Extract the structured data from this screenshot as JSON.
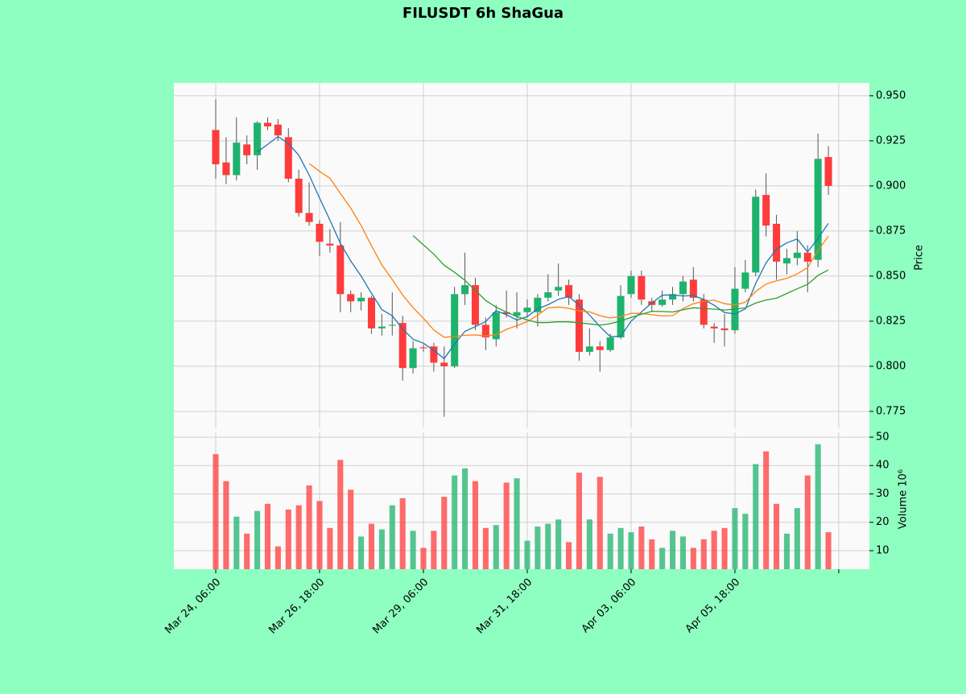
{
  "chart_data": {
    "type": "candlestick",
    "title": "FILUSDT 6h ShaGua",
    "ylabel": "Price",
    "volume_label": "Volume  10⁶",
    "open": [
      0.931,
      0.913,
      0.906,
      0.923,
      0.917,
      0.935,
      0.934,
      0.927,
      0.904,
      0.885,
      0.879,
      0.868,
      0.867,
      0.84,
      0.836,
      0.838,
      0.821,
      0.8225,
      0.824,
      0.799,
      0.8105,
      0.811,
      0.802,
      0.8,
      0.84,
      0.845,
      0.823,
      0.815,
      0.83,
      0.828,
      0.83,
      0.83,
      0.838,
      0.842,
      0.845,
      0.837,
      0.808,
      0.811,
      0.809,
      0.816,
      0.84,
      0.85,
      0.836,
      0.834,
      0.837,
      0.84,
      0.848,
      0.837,
      0.822,
      0.821,
      0.82,
      0.843,
      0.852,
      0.895,
      0.879,
      0.857,
      0.86,
      0.863,
      0.859,
      0.916
    ],
    "high": [
      0.948,
      0.927,
      0.938,
      0.928,
      0.936,
      0.938,
      0.937,
      0.932,
      0.909,
      0.902,
      0.881,
      0.876,
      0.88,
      0.842,
      0.841,
      0.839,
      0.829,
      0.841,
      0.828,
      0.814,
      0.812,
      0.813,
      0.811,
      0.844,
      0.863,
      0.849,
      0.827,
      0.834,
      0.842,
      0.841,
      0.837,
      0.84,
      0.851,
      0.857,
      0.848,
      0.84,
      0.821,
      0.814,
      0.818,
      0.845,
      0.853,
      0.853,
      0.838,
      0.842,
      0.844,
      0.85,
      0.855,
      0.84,
      0.824,
      0.829,
      0.855,
      0.859,
      0.898,
      0.907,
      0.884,
      0.865,
      0.875,
      0.867,
      0.929,
      0.922
    ],
    "low": [
      0.904,
      0.901,
      0.903,
      0.912,
      0.909,
      0.931,
      0.925,
      0.902,
      0.883,
      0.878,
      0.861,
      0.863,
      0.83,
      0.83,
      0.831,
      0.818,
      0.817,
      0.817,
      0.792,
      0.796,
      0.808,
      0.797,
      0.772,
      0.799,
      0.834,
      0.82,
      0.809,
      0.811,
      0.827,
      0.821,
      0.827,
      0.822,
      0.836,
      0.839,
      0.834,
      0.803,
      0.806,
      0.797,
      0.808,
      0.815,
      0.838,
      0.834,
      0.83,
      0.833,
      0.834,
      0.836,
      0.836,
      0.821,
      0.813,
      0.811,
      0.818,
      0.841,
      0.85,
      0.872,
      0.848,
      0.851,
      0.856,
      0.841,
      0.855,
      0.895
    ],
    "close": [
      0.912,
      0.906,
      0.924,
      0.917,
      0.935,
      0.933,
      0.928,
      0.904,
      0.885,
      0.88,
      0.869,
      0.867,
      0.84,
      0.836,
      0.838,
      0.821,
      0.822,
      0.823,
      0.799,
      0.81,
      0.81,
      0.802,
      0.8,
      0.84,
      0.845,
      0.823,
      0.816,
      0.83,
      0.829,
      0.83,
      0.8325,
      0.838,
      0.841,
      0.844,
      0.838,
      0.808,
      0.811,
      0.809,
      0.816,
      0.839,
      0.85,
      0.837,
      0.834,
      0.837,
      0.84,
      0.847,
      0.838,
      0.823,
      0.821,
      0.82,
      0.843,
      0.852,
      0.894,
      0.878,
      0.858,
      0.86,
      0.863,
      0.858,
      0.915,
      0.9
    ],
    "volume": [
      44,
      34.5,
      22,
      16,
      24,
      26.5,
      11.5,
      24.5,
      26,
      33,
      27.5,
      18,
      42,
      31.5,
      15,
      19.5,
      17.5,
      26,
      28.5,
      17,
      11,
      17,
      29,
      36.5,
      39,
      34.5,
      18,
      19,
      34,
      35.5,
      13.5,
      18.5,
      19.5,
      21,
      13,
      37.5,
      21,
      36,
      16,
      18,
      16.5,
      18.5,
      14,
      11,
      17,
      15,
      11,
      14,
      17,
      18,
      25,
      23,
      40.5,
      45,
      26.5,
      16,
      25,
      36.5,
      47.5,
      16.5
    ],
    "up_color": "#1db36c",
    "down_color": "#ff3b3b",
    "moving_averages": [
      {
        "window": 5,
        "color": "#1f77b4"
      },
      {
        "window": 10,
        "color": "#ff7f0e"
      },
      {
        "window": 20,
        "color": "#2ca02c"
      }
    ],
    "xlim": [
      -4.03,
      62.95
    ],
    "xticks": [
      {
        "value": 0,
        "label": "Mar 24, 06:00"
      },
      {
        "value": 10,
        "label": "Mar 26, 18:00"
      },
      {
        "value": 20,
        "label": "Mar 29, 06:00"
      },
      {
        "value": 30,
        "label": "Mar 31, 18:00"
      },
      {
        "value": 40,
        "label": "Apr 03, 06:00"
      },
      {
        "value": 50,
        "label": "Apr 05, 18:00"
      },
      {
        "value": 60,
        "label": null
      }
    ],
    "ylim": [
      0.7656,
      0.9571
    ],
    "yticks": [
      {
        "value": 0.95,
        "label": "0.950"
      },
      0.925,
      {
        "value": 0.9,
        "label": "0.900"
      },
      0.875,
      {
        "value": 0.85,
        "label": "0.850"
      },
      0.825,
      {
        "value": 0.8,
        "label": "0.800"
      },
      0.775
    ],
    "volume_lim": [
      3.47,
      51.7
    ],
    "volume_ticks": [
      10,
      20,
      30,
      40,
      50
    ],
    "grid": true
  }
}
